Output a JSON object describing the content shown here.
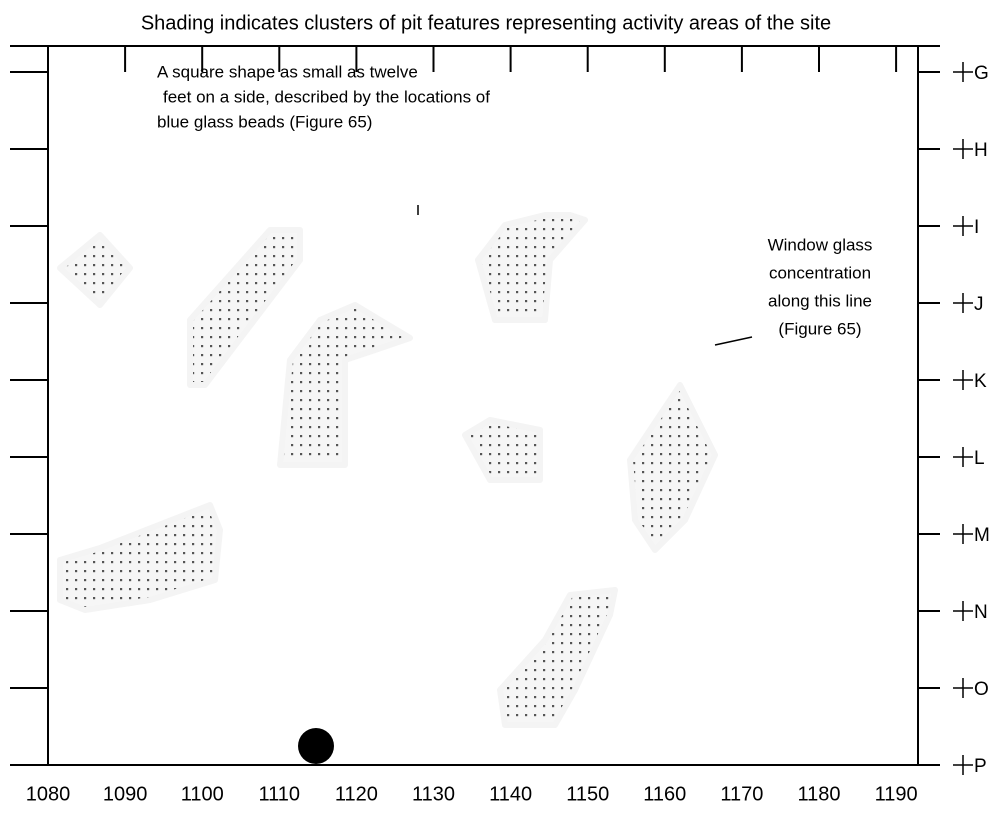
{
  "title": "Shading indicates clusters of pit features representing activity areas of the site",
  "x_labels": [
    "1080",
    "1090",
    "1100",
    "1110",
    "1120",
    "1130",
    "1140",
    "1150",
    "1160",
    "1170",
    "1180",
    "1190"
  ],
  "row_labels": [
    "G",
    "H",
    "I",
    "J",
    "K",
    "L",
    "M",
    "N",
    "O",
    "P"
  ],
  "annotations": {
    "beads": [
      "A square shape as small as twelve",
      "feet on  a side, described by the locations of",
      "blue glass beads (Figure 65)"
    ],
    "window": [
      "Window glass",
      "concentration",
      "along this line",
      "(Figure 65)"
    ]
  }
}
